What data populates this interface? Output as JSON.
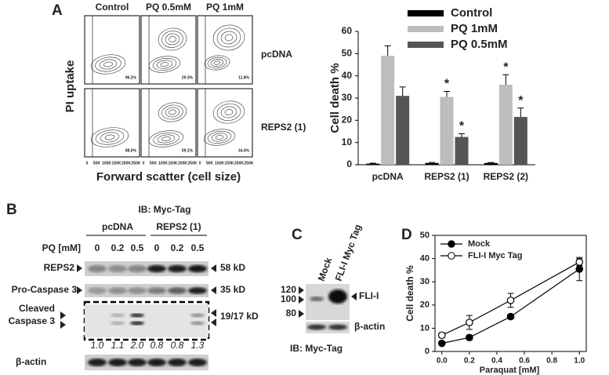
{
  "panel_labels": [
    "A",
    "B",
    "C",
    "D"
  ],
  "flow": {
    "columns": [
      "Control",
      "PQ 0.5mM",
      "PQ 1mM"
    ],
    "rows": [
      "pcDNA",
      "REPS2 (1)"
    ],
    "percentages": [
      [
        "96.2%",
        "29.3%",
        "11.8%"
      ],
      [
        "88.0%",
        "59.1%",
        "34.4%"
      ]
    ],
    "x_ticks": [
      "0",
      "50K",
      "100K",
      "150K",
      "200K",
      "250K"
    ],
    "y_label": "PI uptake",
    "x_label": "Forward scatter (cell size)"
  },
  "chart_data": [
    {
      "type": "bar",
      "y_label": "Cell death %",
      "categories": [
        "pcDNA",
        "REPS2 (1)",
        "REPS2 (2)"
      ],
      "series": [
        {
          "name": "Control",
          "color": "#000000",
          "values": [
            0.5,
            0.8,
            0.8
          ],
          "errors": [
            0.2,
            0.2,
            0.2
          ],
          "significance": [
            null,
            null,
            null
          ]
        },
        {
          "name": "PQ 1mM",
          "color": "#bdbdbd",
          "values": [
            49,
            30.5,
            36
          ],
          "errors": [
            4.5,
            2.5,
            4.5
          ],
          "significance": [
            null,
            "*",
            "*"
          ]
        },
        {
          "name": "PQ 0.5mM",
          "color": "#555555",
          "values": [
            31,
            12.5,
            21.5
          ],
          "errors": [
            4,
            1.5,
            4
          ],
          "significance": [
            null,
            "*",
            "*"
          ]
        }
      ],
      "ylim": [
        0,
        60
      ],
      "yticks": [
        0,
        10,
        20,
        30,
        40,
        50,
        60
      ]
    },
    {
      "type": "line",
      "x_label": "Paraquat [mM]",
      "y_label": "Cell death %",
      "x": [
        0,
        0.2,
        0.5,
        1.0
      ],
      "series": [
        {
          "name": "Mock",
          "color": "#000000",
          "marker": "filled",
          "values": [
            3.5,
            6,
            15,
            35.5
          ],
          "errors": [
            0.5,
            1,
            1,
            5
          ]
        },
        {
          "name": "FLI-I Myc Tag",
          "color": "#000000",
          "marker": "open",
          "values": [
            7,
            12.5,
            22,
            38.5
          ],
          "errors": [
            1,
            3,
            3,
            1.5
          ]
        }
      ],
      "xlim": [
        -0.05,
        1.05
      ],
      "xticks": [
        {
          "value": 0,
          "label": "0.0"
        },
        0.2,
        0.4,
        0.6,
        0.8,
        {
          "value": 1,
          "label": "1.0"
        }
      ],
      "ylim": [
        0,
        50
      ],
      "yticks": [
        0,
        10,
        20,
        30,
        40,
        50
      ]
    }
  ],
  "blot_b": {
    "antibody": "IB: Myc-Tag",
    "groups": [
      "pcDNA",
      "REPS2 (1)"
    ],
    "dose_label": "PQ [mM]",
    "doses": [
      "0",
      "0.2",
      "0.5",
      "0",
      "0.2",
      "0.5"
    ],
    "rows": [
      "REPS2",
      "Pro-Caspase 3",
      "Cleaved",
      "Caspase 3",
      "β-actin"
    ],
    "sizes": [
      "58 kD",
      "35 kD",
      "19/17 kD"
    ],
    "quantification": [
      "1.0",
      "1.1",
      "2.0",
      "0.8",
      "0.8",
      "1.3"
    ]
  },
  "blot_c": {
    "lanes": [
      "Mock",
      "FLI-I Myc Tag"
    ],
    "markers": [
      "120",
      "100",
      "80"
    ],
    "bands": [
      "FLI-I",
      "β-actin"
    ],
    "antibody": "IB: Myc-Tag"
  }
}
